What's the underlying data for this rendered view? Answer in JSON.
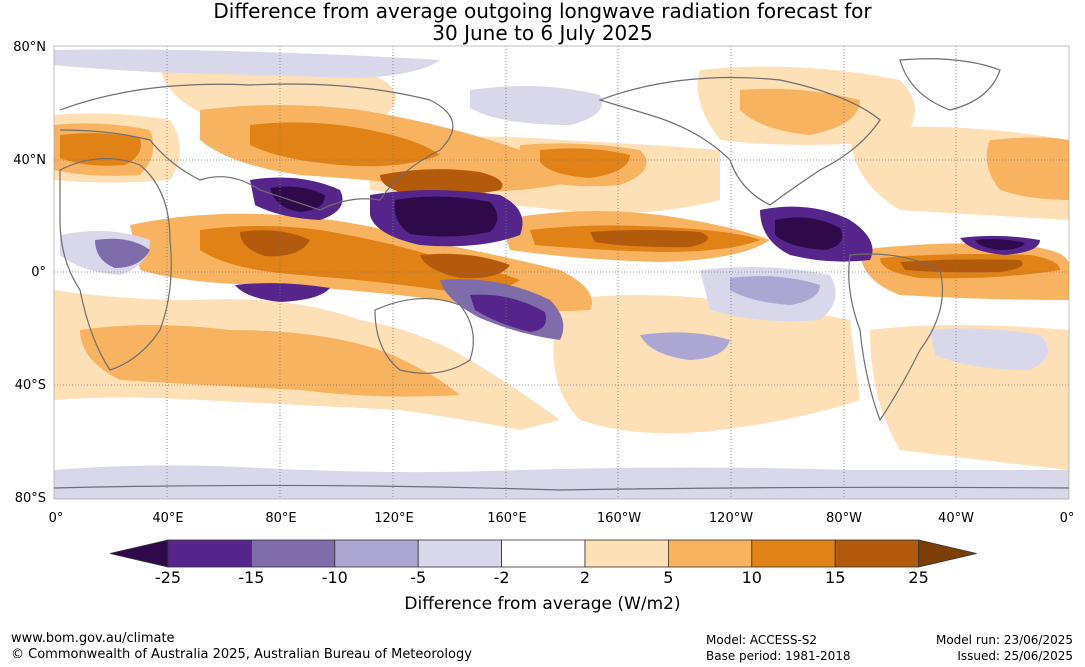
{
  "title_line1": "Difference from average outgoing longwave radiation forecast for",
  "title_line2": "30 June to 6 July 2025",
  "y_axis_labels": [
    "80°N",
    "40°N",
    "0°",
    "40°S",
    "80°S"
  ],
  "x_axis_labels": [
    "0°",
    "40°E",
    "80°E",
    "120°E",
    "160°E",
    "160°W",
    "120°W",
    "80°W",
    "40°W",
    "0°"
  ],
  "legend": {
    "tick_labels": [
      "-25",
      "-15",
      "-10",
      "-5",
      "-2",
      "2",
      "5",
      "10",
      "15",
      "25"
    ],
    "title": "Difference from average (W/m2)",
    "colors": [
      "#2e0a4a",
      "#56258b",
      "#7e6cab",
      "#aca6d2",
      "#d9d7ea",
      "#ffffff",
      "#fde0b5",
      "#f8b360",
      "#e08216",
      "#b35a0c",
      "#7c3d06"
    ]
  },
  "footer": {
    "website": "www.bom.gov.au/climate",
    "copyright": "© Commonwealth of Australia 2025, Australian Bureau of Meteorology",
    "model": "Model: ACCESS-S2",
    "base_period": "Base period: 1981-2018",
    "model_run": "Model run: 23/06/2025",
    "issued": "Issued: 25/06/2025"
  },
  "map_features": [
    {
      "name": "anomaly-maritime-continent-neg",
      "level": -25
    },
    {
      "name": "anomaly-bay-of-bengal-neg",
      "level": -25
    },
    {
      "name": "anomaly-central-america-neg",
      "level": -25
    },
    {
      "name": "anomaly-atlantic-itcz-neg",
      "level": -25
    },
    {
      "name": "anomaly-china-pos",
      "level": 15
    },
    {
      "name": "anomaly-indian-ocean-pos",
      "level": 15
    },
    {
      "name": "anomaly-pacific-itcz-pos",
      "level": 15
    },
    {
      "name": "anomaly-atlantic-pos",
      "level": 15
    }
  ]
}
